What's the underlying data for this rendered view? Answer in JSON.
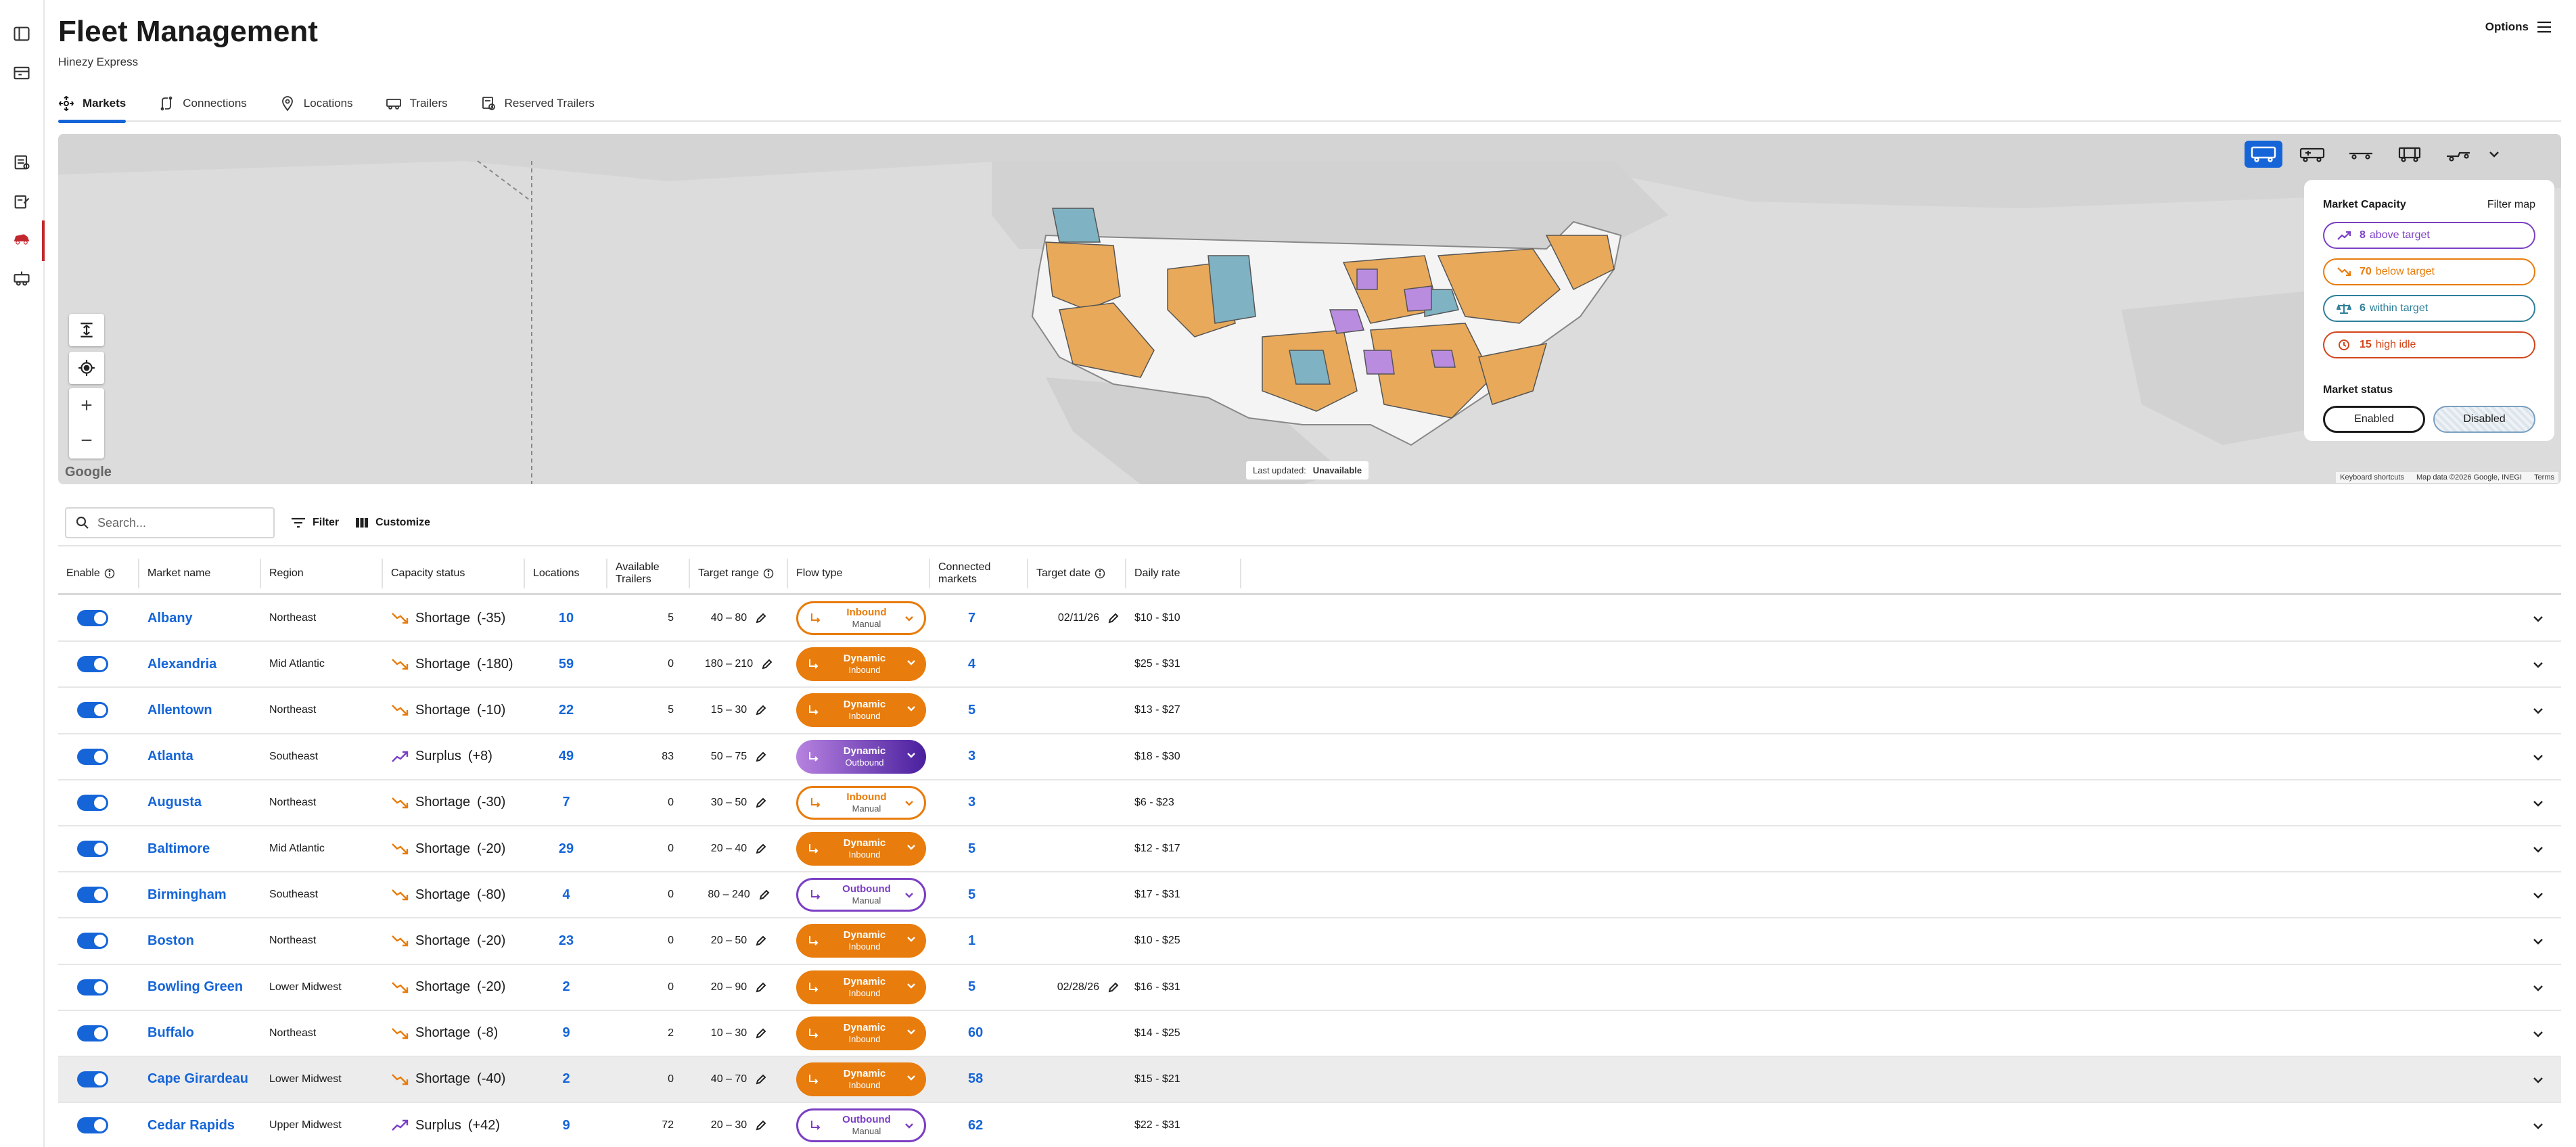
{
  "header": {
    "title": "Fleet Management",
    "subtitle": "Hinezy Express",
    "options_label": "Options"
  },
  "tabs": [
    {
      "label": "Markets",
      "icon": "markets-icon",
      "active": true
    },
    {
      "label": "Connections",
      "icon": "connections-icon"
    },
    {
      "label": "Locations",
      "icon": "location-pin-icon"
    },
    {
      "label": "Trailers",
      "icon": "trailer-icon"
    },
    {
      "label": "Reserved Trailers",
      "icon": "reserved-trailer-icon"
    }
  ],
  "map": {
    "last_updated_label": "Last updated:",
    "last_updated_value": "Unavailable",
    "google_label": "Google",
    "footer": [
      "Keyboard shortcuts",
      "Map data ©2026 Google, INEGI",
      "Terms"
    ],
    "colors": {
      "shortage": "#e8a95a",
      "surplus": "#b98ce0",
      "within": "#7fb2c2",
      "other": "#d0d0d0"
    }
  },
  "panel": {
    "title": "Market Capacity",
    "filter_label": "Filter map",
    "capacity": [
      {
        "count": "8",
        "label": "above target",
        "color": "#7b3fc4"
      },
      {
        "count": "70",
        "label": "below target",
        "color": "#e87c0c"
      },
      {
        "count": "6",
        "label": "within target",
        "color": "#2d7f9a"
      },
      {
        "count": "15",
        "label": "high idle",
        "color": "#d2461b"
      }
    ],
    "status_title": "Market status",
    "enabled_label": "Enabled",
    "disabled_label": "Disabled"
  },
  "toolbar": {
    "search_placeholder": "Search...",
    "filter_label": "Filter",
    "customize_label": "Customize"
  },
  "columns": [
    "Enable",
    "Market name",
    "Region",
    "Capacity status",
    "Locations",
    "Available Trailers",
    "Target range",
    "Flow type",
    "Connected markets",
    "Target date",
    "Daily rate"
  ],
  "rows": [
    {
      "name": "Albany",
      "region": "Northeast",
      "status": "Shortage",
      "delta": "(-35)",
      "locations": "10",
      "available": "5",
      "range": "40 – 80",
      "flow": "Inbound",
      "flow_sub": "Manual",
      "flow_style": "out-orange",
      "connected": "7",
      "date": "02/11/26",
      "rate": "$10 - $10"
    },
    {
      "name": "Alexandria",
      "region": "Mid Atlantic",
      "status": "Shortage",
      "delta": "(-180)",
      "locations": "59",
      "available": "0",
      "range": "180 – 210",
      "flow": "Dynamic",
      "flow_sub": "Inbound",
      "flow_style": "solid-orange",
      "connected": "4",
      "date": "",
      "rate": "$25 - $31"
    },
    {
      "name": "Allentown",
      "region": "Northeast",
      "status": "Shortage",
      "delta": "(-10)",
      "locations": "22",
      "available": "5",
      "range": "15 – 30",
      "flow": "Dynamic",
      "flow_sub": "Inbound",
      "flow_style": "solid-orange",
      "connected": "5",
      "date": "",
      "rate": "$13 - $27"
    },
    {
      "name": "Atlanta",
      "region": "Southeast",
      "status": "Surplus",
      "delta": "(+8)",
      "locations": "49",
      "available": "83",
      "range": "50 – 75",
      "flow": "Dynamic",
      "flow_sub": "Outbound",
      "flow_style": "solid-purple",
      "connected": "3",
      "date": "",
      "rate": "$18 - $30"
    },
    {
      "name": "Augusta",
      "region": "Northeast",
      "status": "Shortage",
      "delta": "(-30)",
      "locations": "7",
      "available": "0",
      "range": "30 – 50",
      "flow": "Inbound",
      "flow_sub": "Manual",
      "flow_style": "out-orange",
      "connected": "3",
      "date": "",
      "rate": "$6 - $23"
    },
    {
      "name": "Baltimore",
      "region": "Mid Atlantic",
      "status": "Shortage",
      "delta": "(-20)",
      "locations": "29",
      "available": "0",
      "range": "20 – 40",
      "flow": "Dynamic",
      "flow_sub": "Inbound",
      "flow_style": "solid-orange",
      "connected": "5",
      "date": "",
      "rate": "$12 - $17"
    },
    {
      "name": "Birmingham",
      "region": "Southeast",
      "status": "Shortage",
      "delta": "(-80)",
      "locations": "4",
      "available": "0",
      "range": "80 – 240",
      "flow": "Outbound",
      "flow_sub": "Manual",
      "flow_style": "out-purple",
      "connected": "5",
      "date": "",
      "rate": "$17 - $31"
    },
    {
      "name": "Boston",
      "region": "Northeast",
      "status": "Shortage",
      "delta": "(-20)",
      "locations": "23",
      "available": "0",
      "range": "20 – 50",
      "flow": "Dynamic",
      "flow_sub": "Inbound",
      "flow_style": "solid-orange",
      "connected": "1",
      "date": "",
      "rate": "$10 - $25"
    },
    {
      "name": "Bowling Green",
      "region": "Lower Midwest",
      "status": "Shortage",
      "delta": "(-20)",
      "locations": "2",
      "available": "0",
      "range": "20 – 90",
      "flow": "Dynamic",
      "flow_sub": "Inbound",
      "flow_style": "solid-orange",
      "connected": "5",
      "date": "02/28/26",
      "rate": "$16 - $31"
    },
    {
      "name": "Buffalo",
      "region": "Northeast",
      "status": "Shortage",
      "delta": "(-8)",
      "locations": "9",
      "available": "2",
      "range": "10 – 30",
      "flow": "Dynamic",
      "flow_sub": "Inbound",
      "flow_style": "solid-orange",
      "connected": "60",
      "date": "",
      "rate": "$14 - $25"
    },
    {
      "name": "Cape Girardeau",
      "region": "Lower Midwest",
      "status": "Shortage",
      "delta": "(-40)",
      "locations": "2",
      "available": "0",
      "range": "40 – 70",
      "flow": "Dynamic",
      "flow_sub": "Inbound",
      "flow_style": "solid-orange",
      "connected": "58",
      "date": "",
      "rate": "$15 - $21",
      "highlight": true
    },
    {
      "name": "Cedar Rapids",
      "region": "Upper Midwest",
      "status": "Surplus",
      "delta": "(+42)",
      "locations": "9",
      "available": "72",
      "range": "20 – 30",
      "flow": "Outbound",
      "flow_sub": "Manual",
      "flow_style": "out-purple",
      "connected": "62",
      "date": "",
      "rate": "$22 - $31"
    }
  ]
}
